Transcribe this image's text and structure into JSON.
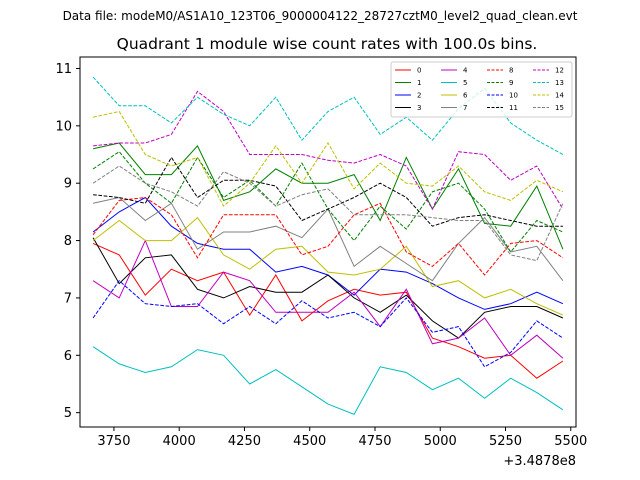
{
  "header": {
    "file_line": "Data file: modeM0/AS1A10_123T06_9000004122_28727cztM0_level2_quad_clean.evt"
  },
  "chart_data": {
    "type": "line",
    "title": "Quadrant 1 module wise count rates with 100.0s bins.",
    "xlabel": "",
    "ylabel": "",
    "x_offset_label": "+3.4878e8",
    "xlim": [
      3620,
      5520
    ],
    "ylim": [
      4.75,
      11.2
    ],
    "xticks": [
      3750,
      4000,
      4250,
      4500,
      4750,
      5000,
      5250,
      5500
    ],
    "yticks": [
      5,
      6,
      7,
      8,
      9,
      10,
      11
    ],
    "x": [
      3670,
      3770,
      3870,
      3970,
      4070,
      4170,
      4270,
      4370,
      4470,
      4570,
      4670,
      4770,
      4870,
      4970,
      5070,
      5170,
      5270,
      5370,
      5470
    ],
    "series": [
      {
        "name": "0",
        "color": "#ff0000",
        "dash": "solid",
        "values": [
          7.95,
          7.75,
          7.05,
          7.5,
          7.3,
          7.45,
          6.7,
          7.4,
          6.6,
          6.95,
          7.15,
          7.05,
          7.1,
          6.3,
          6.15,
          5.95,
          6.0,
          5.6,
          5.9
        ]
      },
      {
        "name": "1",
        "color": "#008000",
        "dash": "solid",
        "values": [
          9.6,
          9.7,
          9.15,
          9.15,
          9.65,
          8.7,
          8.85,
          9.25,
          9.0,
          9.0,
          9.15,
          8.35,
          9.45,
          8.55,
          9.25,
          8.3,
          8.25,
          8.95,
          7.85
        ]
      },
      {
        "name": "2",
        "color": "#0000ff",
        "dash": "solid",
        "values": [
          8.15,
          8.5,
          8.75,
          8.25,
          7.95,
          7.85,
          7.85,
          7.45,
          7.55,
          7.4,
          7.05,
          7.5,
          7.45,
          7.25,
          7.0,
          6.8,
          6.9,
          7.1,
          6.9
        ]
      },
      {
        "name": "3",
        "color": "#000000",
        "dash": "solid",
        "values": [
          8.05,
          7.25,
          7.7,
          7.75,
          7.15,
          7.0,
          7.2,
          7.1,
          7.1,
          7.4,
          7.0,
          6.75,
          7.05,
          6.6,
          6.3,
          6.75,
          6.85,
          6.85,
          6.65
        ]
      },
      {
        "name": "4",
        "color": "#c000c0",
        "dash": "solid",
        "values": [
          7.3,
          7.0,
          8.0,
          6.85,
          6.85,
          7.45,
          7.3,
          6.75,
          6.75,
          6.75,
          7.1,
          6.5,
          7.15,
          6.2,
          6.3,
          6.65,
          6.0,
          6.35,
          5.95
        ]
      },
      {
        "name": "5",
        "color": "#00bfbf",
        "dash": "solid",
        "values": [
          6.15,
          5.85,
          5.7,
          5.8,
          6.1,
          6.0,
          5.5,
          5.75,
          5.45,
          5.15,
          4.97,
          5.8,
          5.7,
          5.4,
          5.6,
          5.25,
          5.6,
          5.35,
          5.05
        ]
      },
      {
        "name": "6",
        "color": "#bfbf00",
        "dash": "solid",
        "values": [
          8.0,
          8.35,
          8.0,
          8.0,
          8.4,
          7.75,
          7.5,
          7.85,
          7.9,
          7.45,
          7.4,
          7.5,
          7.9,
          7.2,
          7.3,
          7.0,
          7.15,
          6.9,
          6.7
        ]
      },
      {
        "name": "7",
        "color": "#808080",
        "dash": "solid",
        "values": [
          8.65,
          8.75,
          8.35,
          8.65,
          7.85,
          8.15,
          8.15,
          8.25,
          8.05,
          8.55,
          7.55,
          7.9,
          7.6,
          7.3,
          7.95,
          8.4,
          7.8,
          7.9,
          7.3
        ]
      },
      {
        "name": "8",
        "color": "#ff0000",
        "dash": "dashed",
        "values": [
          8.1,
          8.7,
          8.75,
          8.45,
          7.7,
          8.45,
          8.45,
          8.45,
          7.75,
          7.9,
          8.45,
          8.65,
          7.8,
          7.55,
          7.95,
          7.4,
          7.95,
          8.0,
          7.7
        ]
      },
      {
        "name": "9",
        "color": "#008000",
        "dash": "dashed",
        "values": [
          9.25,
          9.55,
          9.0,
          8.65,
          9.45,
          8.75,
          9.05,
          8.6,
          9.35,
          8.55,
          8.0,
          8.6,
          8.2,
          8.85,
          9.0,
          8.55,
          7.8,
          8.35,
          8.15
        ]
      },
      {
        "name": "10",
        "color": "#0000ff",
        "dash": "dashed",
        "values": [
          6.65,
          7.3,
          6.9,
          6.85,
          6.9,
          6.55,
          6.85,
          6.55,
          6.95,
          6.65,
          6.75,
          6.5,
          7.0,
          6.4,
          6.5,
          5.8,
          6.05,
          6.6,
          6.3
        ]
      },
      {
        "name": "11",
        "color": "#000000",
        "dash": "dashed",
        "values": [
          8.8,
          8.75,
          8.65,
          9.45,
          8.75,
          9.05,
          9.05,
          8.95,
          8.35,
          8.55,
          8.75,
          9.0,
          8.75,
          8.25,
          8.4,
          8.45,
          8.35,
          8.25,
          8.25
        ]
      },
      {
        "name": "12",
        "color": "#c000c0",
        "dash": "dashed",
        "values": [
          9.65,
          9.7,
          9.7,
          9.85,
          10.6,
          10.25,
          9.5,
          9.5,
          9.5,
          9.4,
          9.35,
          9.5,
          9.3,
          8.55,
          9.55,
          9.5,
          9.05,
          9.3,
          8.55
        ]
      },
      {
        "name": "13",
        "color": "#00bfbf",
        "dash": "dashed",
        "values": [
          10.85,
          10.35,
          10.35,
          10.05,
          10.5,
          10.2,
          10.0,
          10.5,
          9.75,
          10.25,
          10.5,
          9.85,
          10.15,
          9.75,
          10.3,
          10.65,
          10.05,
          9.75,
          9.5
        ]
      },
      {
        "name": "14",
        "color": "#bfbf00",
        "dash": "dashed",
        "values": [
          10.15,
          10.25,
          9.5,
          9.3,
          9.45,
          8.6,
          9.0,
          9.65,
          9.0,
          9.7,
          8.9,
          9.35,
          9.0,
          8.95,
          9.3,
          8.85,
          8.7,
          9.05,
          8.85
        ]
      },
      {
        "name": "15",
        "color": "#808080",
        "dash": "dashed",
        "values": [
          9.0,
          9.3,
          9.0,
          8.85,
          8.6,
          9.2,
          9.0,
          8.6,
          8.8,
          8.9,
          8.45,
          8.45,
          8.45,
          8.4,
          8.35,
          8.35,
          7.75,
          7.65,
          8.65
        ]
      }
    ],
    "legend": {
      "placement": "top-right",
      "columns": 4
    }
  }
}
